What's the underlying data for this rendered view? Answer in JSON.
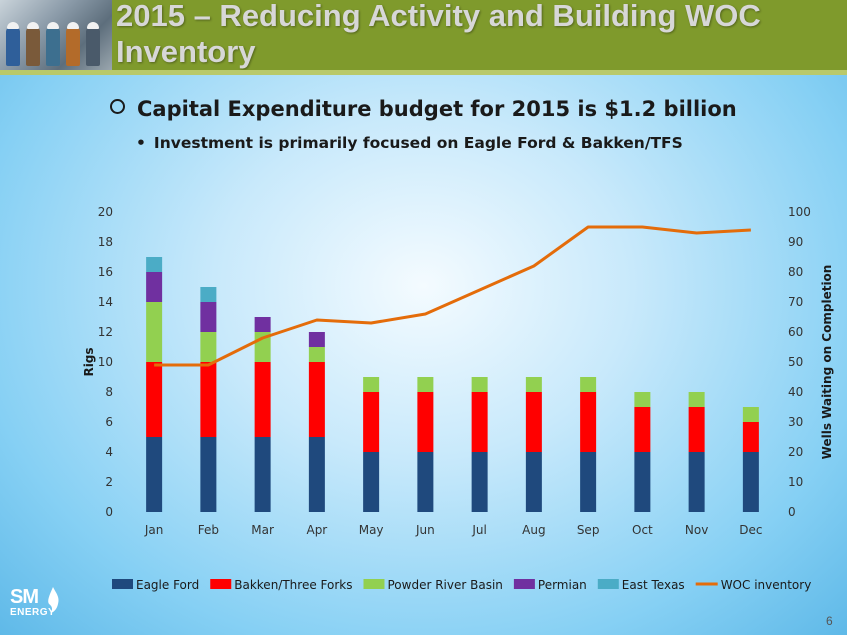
{
  "header": {
    "title": "2015 – Reducing Activity and Building WOC Inventory"
  },
  "bullets": {
    "main": "Capital Expenditure budget for 2015 is $1.2 billion",
    "sub": "Investment is primarily focused on Eagle Ford & Bakken/TFS"
  },
  "footer": {
    "logo_line1": "SM",
    "logo_line2": "ENERGY",
    "page_number": "6"
  },
  "colors": {
    "eagle_ford": "#1f497d",
    "bakken": "#ff0000",
    "powder_river": "#92d050",
    "permian": "#7030a0",
    "east_texas": "#4bacc6",
    "woc": "#e46c0a",
    "header_bg": "#7f9a2c"
  },
  "chart_data": {
    "type": "bar",
    "stacked": true,
    "title": "",
    "xlabel": "",
    "ylabel": "Rigs",
    "y2label": "Wells Waiting on Completion",
    "ylim": [
      0,
      20
    ],
    "y2lim": [
      0,
      100
    ],
    "yticks": [
      "0",
      "2",
      "4",
      "6",
      "8",
      "10",
      "12",
      "14",
      "16",
      "18",
      "20"
    ],
    "y2ticks": [
      "0",
      "10",
      "20",
      "30",
      "40",
      "50",
      "60",
      "70",
      "80",
      "90",
      "100"
    ],
    "grid": false,
    "legend": "bottom",
    "categories": [
      "Jan",
      "Feb",
      "Mar",
      "Apr",
      "May",
      "Jun",
      "Jul",
      "Aug",
      "Sep",
      "Oct",
      "Nov",
      "Dec"
    ],
    "series": [
      {
        "name": "Eagle Ford",
        "key": "eagle_ford",
        "values": [
          5,
          5,
          5,
          5,
          4,
          4,
          4,
          4,
          4,
          4,
          4,
          4
        ]
      },
      {
        "name": "Bakken/Three Forks",
        "key": "bakken",
        "values": [
          5,
          5,
          5,
          5,
          4,
          4,
          4,
          4,
          4,
          3,
          3,
          2
        ]
      },
      {
        "name": "Powder River Basin",
        "key": "powder_river",
        "values": [
          4,
          2,
          2,
          1,
          1,
          1,
          1,
          1,
          1,
          1,
          1,
          1
        ]
      },
      {
        "name": "Permian",
        "key": "permian",
        "values": [
          2,
          2,
          1,
          1,
          0,
          0,
          0,
          0,
          0,
          0,
          0,
          0
        ]
      },
      {
        "name": "East Texas",
        "key": "east_texas",
        "values": [
          1,
          1,
          0,
          0,
          0,
          0,
          0,
          0,
          0,
          0,
          0,
          0
        ]
      }
    ],
    "line_series": {
      "name": "WOC inventory",
      "key": "woc",
      "axis": "secondary",
      "values": [
        49,
        49,
        58,
        64,
        63,
        66,
        74,
        82,
        95,
        95,
        93,
        94
      ]
    }
  }
}
